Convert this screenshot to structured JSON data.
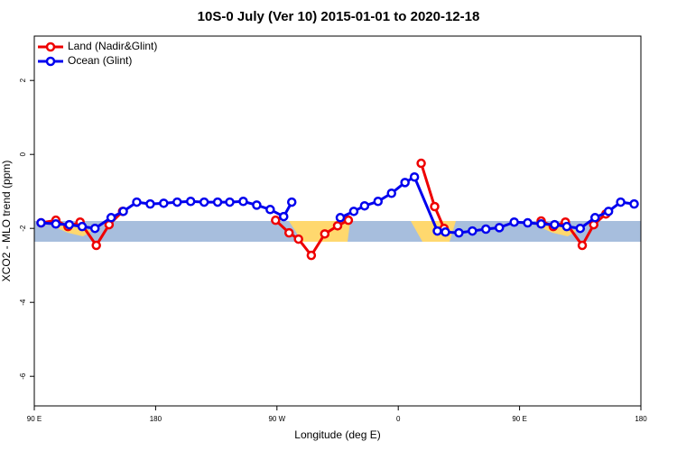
{
  "chart_data": {
    "type": "line",
    "title": "10S-0 July (Ver 10)   2015-01-01 to 2020-12-18",
    "x_label": "Longitude (deg E)",
    "y_label": "XCO2 - MLO trend (ppm)",
    "xlim": [
      90,
      540
    ],
    "ylim": [
      -6.8,
      3.2
    ],
    "xticks": [
      {
        "value": 90,
        "label": "90 E"
      },
      180,
      {
        "value": 270,
        "label": "90 W"
      },
      {
        "value": 360,
        "label": "0"
      },
      {
        "value": 450,
        "label": "90 E"
      },
      {
        "value": 540,
        "label": "180"
      }
    ],
    "yticks": [
      -6,
      -4,
      -2,
      0,
      2
    ],
    "legend": "top-left",
    "series": [
      {
        "name": "Land (Nadir&Glint)",
        "color": "#ee0000",
        "x": [
          95,
          106,
          115,
          124,
          136,
          145.5,
          155.5,
          null,
          269,
          279,
          286,
          295.5,
          305.5,
          315,
          323,
          null,
          377,
          387,
          394,
          null,
          466,
          475,
          484,
          496.5,
          505,
          514
        ],
        "values": [
          -1.85,
          -1.78,
          -1.95,
          -1.83,
          -2.46,
          -1.9,
          -1.54,
          null,
          -1.78,
          -2.12,
          -2.29,
          -2.73,
          -2.15,
          -1.93,
          -1.78,
          null,
          -0.24,
          -1.41,
          -2.0,
          null,
          -1.8,
          -1.95,
          -1.83,
          -2.46,
          -1.9,
          -1.61
        ]
      },
      {
        "name": "Ocean (Glint)",
        "color": "#0000ee",
        "x": [
          95,
          106,
          116,
          125.5,
          135,
          147,
          156,
          166,
          176,
          186,
          196,
          206,
          216,
          226,
          235,
          245,
          255,
          265,
          275,
          281,
          null,
          317,
          327,
          335,
          345,
          355,
          365,
          372,
          389,
          395,
          405,
          415,
          425,
          435,
          446,
          456,
          466,
          476,
          485,
          495,
          506,
          516,
          525,
          535
        ],
        "values": [
          -1.85,
          -1.88,
          -1.9,
          -1.95,
          -2.0,
          -1.71,
          -1.54,
          -1.29,
          -1.34,
          -1.32,
          -1.29,
          -1.27,
          -1.29,
          -1.29,
          -1.29,
          -1.27,
          -1.37,
          -1.49,
          -1.68,
          -1.29,
          null,
          -1.71,
          -1.54,
          -1.39,
          -1.27,
          -1.05,
          -0.76,
          -0.61,
          -2.07,
          -2.1,
          -2.12,
          -2.07,
          -2.02,
          -1.98,
          -1.83,
          -1.85,
          -1.88,
          -1.9,
          -1.95,
          -2.0,
          -1.71,
          -1.54,
          -1.29,
          -1.34
        ]
      }
    ]
  }
}
